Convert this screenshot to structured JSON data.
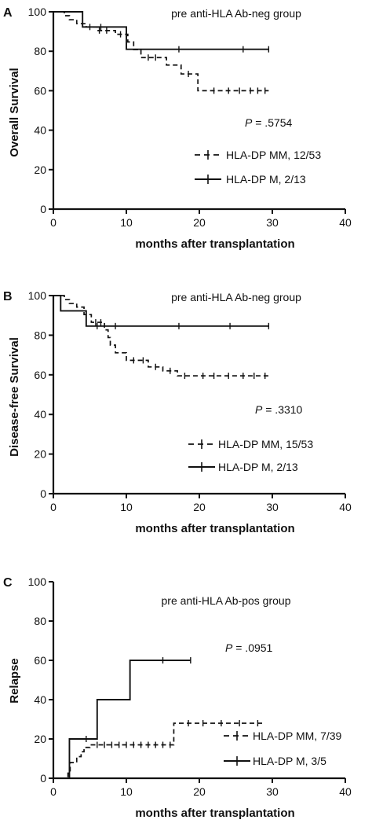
{
  "chart_data": [
    {
      "panel": "A",
      "type": "line",
      "subtype": "kaplan-meier",
      "title": "",
      "group_label": "pre anti-HLA Ab-neg group",
      "p_label": "P",
      "p_value": " = .5754",
      "xlabel": "months after transplantation",
      "ylabel": "Overall Survival",
      "xlim": [
        0,
        40
      ],
      "ylim": [
        0,
        100
      ],
      "xticks": [
        0,
        10,
        20,
        30,
        40
      ],
      "yticks": [
        0,
        20,
        40,
        60,
        80,
        100
      ],
      "grid": false,
      "legend_position": "right-middle",
      "series": [
        {
          "name": "HLA-DP MM, 12/53",
          "style": "dashed",
          "steps": [
            [
              0,
              100
            ],
            [
              1.5,
              98
            ],
            [
              2.2,
              96
            ],
            [
              3.2,
              94
            ],
            [
              4.5,
              92.3
            ],
            [
              6,
              90.5
            ],
            [
              8.5,
              88.6
            ],
            [
              10.2,
              84.7
            ],
            [
              11,
              80.8
            ],
            [
              12,
              76.8
            ],
            [
              15.5,
              73
            ],
            [
              17.5,
              68.5
            ],
            [
              19.8,
              60
            ],
            [
              29.5,
              60
            ]
          ],
          "censors": [
            [
              5,
              92.3
            ],
            [
              6.3,
              90.5
            ],
            [
              7.3,
              90.5
            ],
            [
              9.2,
              88.6
            ],
            [
              13,
              76.8
            ],
            [
              14,
              76.8
            ],
            [
              18.5,
              68.5
            ],
            [
              22,
              60
            ],
            [
              24,
              60
            ],
            [
              25.5,
              60
            ],
            [
              27,
              60
            ],
            [
              28,
              60
            ],
            [
              29,
              60
            ]
          ]
        },
        {
          "name": "HLA-DP M, 2/13",
          "style": "solid",
          "steps": [
            [
              0,
              100
            ],
            [
              4,
              92.3
            ],
            [
              10,
              81
            ],
            [
              29.5,
              81
            ]
          ],
          "censors": [
            [
              6.5,
              92.3
            ],
            [
              17.2,
              81
            ],
            [
              26,
              81
            ],
            [
              29.5,
              81
            ]
          ]
        }
      ]
    },
    {
      "panel": "B",
      "type": "line",
      "subtype": "kaplan-meier",
      "title": "",
      "group_label": "pre anti-HLA Ab-neg group",
      "p_label": "P",
      "p_value": " = .3310",
      "xlabel": "months after transplantation",
      "ylabel": "Disease-free Survival",
      "xlim": [
        0,
        40
      ],
      "ylim": [
        0,
        100
      ],
      "xticks": [
        0,
        10,
        20,
        30,
        40
      ],
      "yticks": [
        0,
        20,
        40,
        60,
        80,
        100
      ],
      "grid": false,
      "legend_position": "right-middle",
      "series": [
        {
          "name": "HLA-DP MM, 15/53",
          "style": "dashed",
          "steps": [
            [
              0,
              100
            ],
            [
              1.5,
              98
            ],
            [
              2.2,
              96
            ],
            [
              3.2,
              94.2
            ],
            [
              4.2,
              90.4
            ],
            [
              5.2,
              86.5
            ],
            [
              7,
              82.7
            ],
            [
              7.5,
              78.8
            ],
            [
              7.8,
              75
            ],
            [
              8.5,
              71.1
            ],
            [
              10,
              67.3
            ],
            [
              13,
              64
            ],
            [
              15,
              62
            ],
            [
              17,
              59.5
            ],
            [
              29.5,
              59.5
            ]
          ],
          "censors": [
            [
              5.8,
              86.5
            ],
            [
              6.5,
              86.5
            ],
            [
              11,
              67.3
            ],
            [
              12.3,
              67.3
            ],
            [
              14,
              64
            ],
            [
              16,
              62
            ],
            [
              18,
              59.5
            ],
            [
              20.5,
              59.5
            ],
            [
              22,
              59.5
            ],
            [
              24,
              59.5
            ],
            [
              26,
              59.5
            ],
            [
              27.5,
              59.5
            ],
            [
              29,
              59.5
            ]
          ]
        },
        {
          "name": "HLA-DP M, 2/13",
          "style": "solid",
          "steps": [
            [
              0,
              100
            ],
            [
              1,
              92.3
            ],
            [
              4.5,
              84.6
            ],
            [
              29.5,
              84.6
            ]
          ],
          "censors": [
            [
              6,
              84.6
            ],
            [
              8.5,
              84.6
            ],
            [
              17.2,
              84.6
            ],
            [
              24.2,
              84.6
            ],
            [
              29.5,
              84.6
            ]
          ]
        }
      ]
    },
    {
      "panel": "C",
      "type": "line",
      "subtype": "cumulative-incidence",
      "title": "",
      "group_label": "pre anti-HLA Ab-pos group",
      "p_label": "P",
      "p_value": " = .0951",
      "xlabel": "months after transplantation",
      "ylabel": "Relapse",
      "xlim": [
        0,
        40
      ],
      "ylim": [
        0,
        100
      ],
      "xticks": [
        0,
        10,
        20,
        30,
        40
      ],
      "yticks": [
        0,
        20,
        40,
        60,
        80,
        100
      ],
      "grid": false,
      "legend_position": "bottom-right",
      "series": [
        {
          "name": "HLA-DP MM, 7/39",
          "style": "dashed",
          "steps": [
            [
              0,
              0
            ],
            [
              2,
              2.6
            ],
            [
              2.3,
              8
            ],
            [
              3.2,
              11
            ],
            [
              3.8,
              13.5
            ],
            [
              4.2,
              15.7
            ],
            [
              5,
              17
            ],
            [
              16.5,
              28
            ],
            [
              29,
              28
            ]
          ],
          "censors": [
            [
              6,
              17
            ],
            [
              7,
              17
            ],
            [
              8,
              17
            ],
            [
              9,
              17
            ],
            [
              10,
              17
            ],
            [
              11,
              17
            ],
            [
              12,
              17
            ],
            [
              13,
              17
            ],
            [
              14,
              17
            ],
            [
              15,
              17
            ],
            [
              16,
              17
            ],
            [
              18.5,
              28
            ],
            [
              20.5,
              28
            ],
            [
              23,
              28
            ],
            [
              25.5,
              28
            ],
            [
              28,
              28
            ]
          ]
        },
        {
          "name": "HLA-DP M, 3/5",
          "style": "solid",
          "steps": [
            [
              0,
              0
            ],
            [
              2.2,
              20
            ],
            [
              6,
              40
            ],
            [
              10.5,
              60
            ],
            [
              18.8,
              60
            ]
          ],
          "censors": [
            [
              4.5,
              20
            ],
            [
              15,
              60
            ],
            [
              18.8,
              60
            ]
          ]
        }
      ]
    }
  ]
}
